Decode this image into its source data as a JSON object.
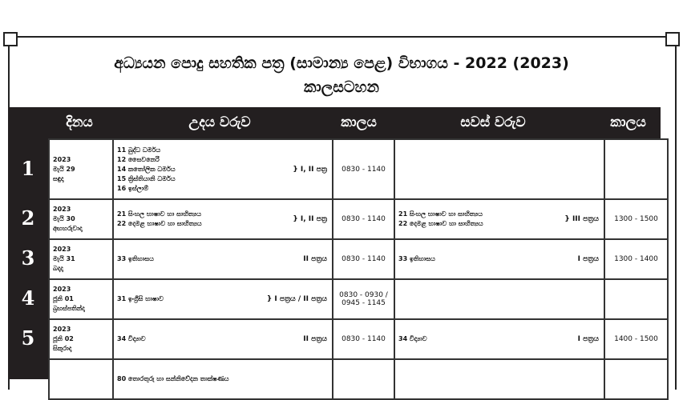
{
  "title": "අධ්‍යයන පොදු සහතික පත්‍ර (සාමාන්‍ය පෙළ) විභාගය - 2022 (2023)",
  "subtitle": "කාලසටහන",
  "headers": [
    "දිනය",
    "උදය වරුව",
    "කාලය",
    "සවස් වරුව",
    "කාලය"
  ],
  "rows": [
    {
      "num": "1",
      "date": [
        "2023",
        "මැයි 29",
        "සඳුදා"
      ],
      "morning": [
        "11  බුද්ධ ධර්මය",
        "12  සෛවනෙරි",
        "14  කතෝලික ධර්මය",
        "15  ක්‍රිස්තියානි ධර්මය",
        "16  ඉස්ලාම්"
      ],
      "morning_paper": "} I, II පත්‍ර",
      "morning_time": "0830 - 1140",
      "afternoon": [],
      "afternoon_paper": "",
      "afternoon_time": ""
    },
    {
      "num": "2",
      "date": [
        "2023",
        "මැයි 30",
        "අඟහරුවාදා"
      ],
      "morning": [
        "21  සිංහල භාෂාව හා සාහිත්‍යය",
        "22  දෙමළ භාෂාව හා සාහිත්‍යය"
      ],
      "morning_paper": "} I, II පත්‍ර",
      "morning_time": "0830 - 1140",
      "afternoon": [
        "21  සිංහල භාෂාව හා සාහිත්‍යය",
        "22  දෙමළ භාෂාව හා සාහිත්‍යය"
      ],
      "afternoon_paper": "} III පත්‍රය",
      "afternoon_time": "1300 - 1500"
    },
    {
      "num": "3",
      "date": [
        "2023",
        "මැයි 31",
        "බදාදා"
      ],
      "morning": [
        "33  ඉතිහාසය"
      ],
      "morning_paper": "II පත්‍රය",
      "morning_time": "0830 - 1140",
      "afternoon": [
        "33  ඉතිහාසය"
      ],
      "afternoon_paper": "I පත්‍රය",
      "afternoon_time": "1300 - 1400"
    },
    {
      "num": "4",
      "date": [
        "2023",
        "ජූනි 01",
        "බ්‍රහස්පතින්දා"
      ],
      "morning": [
        "31  ඉංග්‍රීසි භාෂාව"
      ],
      "morning_paper": "} I  පත්‍රය / II  පත්‍රය",
      "morning_time": "0830 - 0930 / 0945 - 1145",
      "afternoon": [],
      "afternoon_paper": "",
      "afternoon_time": ""
    },
    {
      "num": "5",
      "date": [
        "2023",
        "ජූනි 02",
        "සිකුරාදා"
      ],
      "morning": [
        "34  විද්‍යාව"
      ],
      "morning_paper": "II පත්‍රය",
      "morning_time": "0830 - 1140",
      "afternoon": [
        "34  විද්‍යාව"
      ],
      "afternoon_paper": "I පත්‍රය",
      "afternoon_time": "1400 - 1500"
    },
    {
      "num": "",
      "date": [
        "",
        "",
        ""
      ],
      "morning": [
        "80  තොරතුරු හා සන්නිවේදන තාක්ෂණය"
      ],
      "morning_paper": "",
      "morning_time": "",
      "afternoon": [],
      "afternoon_paper": "",
      "afternoon_time": ""
    }
  ]
}
